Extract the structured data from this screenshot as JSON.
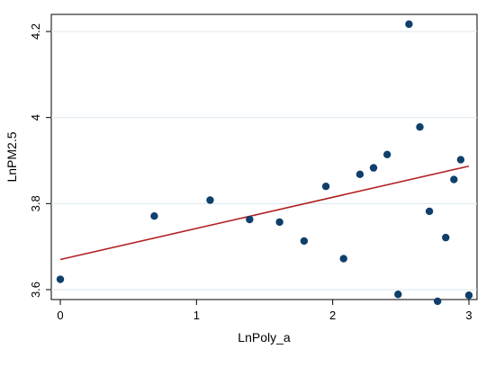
{
  "chart_data": {
    "type": "scatter",
    "xlabel": "LnPoly_a",
    "ylabel": "LnPM2.5",
    "xlim": [
      0,
      3
    ],
    "ylim": [
      3.6,
      4.2
    ],
    "x_ticks": [
      "0",
      "1",
      "2",
      "3"
    ],
    "y_ticks": [
      "3.6",
      "3.8",
      "4",
      "4.2"
    ],
    "grid": "horizontal",
    "colors": {
      "points": "#0f3f6b",
      "fit_line": "#b22222",
      "grid": "#dbe7ee",
      "frame": "#000000"
    },
    "series": [
      {
        "type": "scatter",
        "points": [
          {
            "x": 0.0,
            "y": 3.624
          },
          {
            "x": 0.69,
            "y": 3.771
          },
          {
            "x": 1.1,
            "y": 3.808
          },
          {
            "x": 1.39,
            "y": 3.763
          },
          {
            "x": 1.61,
            "y": 3.757
          },
          {
            "x": 1.79,
            "y": 3.713
          },
          {
            "x": 1.95,
            "y": 3.84
          },
          {
            "x": 2.08,
            "y": 3.672
          },
          {
            "x": 2.2,
            "y": 3.868
          },
          {
            "x": 2.3,
            "y": 3.883
          },
          {
            "x": 2.4,
            "y": 3.914
          },
          {
            "x": 2.48,
            "y": 3.589
          },
          {
            "x": 2.56,
            "y": 4.217
          },
          {
            "x": 2.64,
            "y": 3.978
          },
          {
            "x": 2.71,
            "y": 3.782
          },
          {
            "x": 2.77,
            "y": 3.573
          },
          {
            "x": 2.83,
            "y": 3.721
          },
          {
            "x": 2.89,
            "y": 3.856
          },
          {
            "x": 2.94,
            "y": 3.902
          },
          {
            "x": 3.0,
            "y": 3.587
          }
        ]
      },
      {
        "type": "line",
        "points": [
          {
            "x": 0,
            "y": 3.67
          },
          {
            "x": 3,
            "y": 3.887
          }
        ]
      }
    ]
  }
}
